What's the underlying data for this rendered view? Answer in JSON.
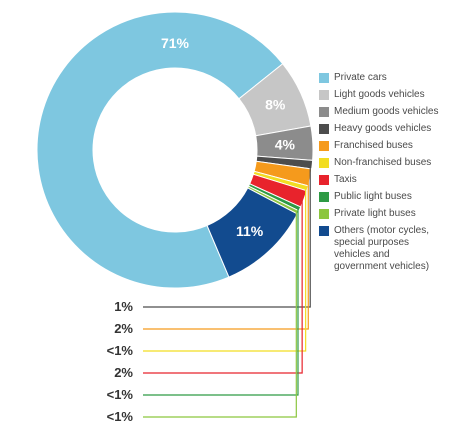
{
  "chart_data": {
    "type": "pie",
    "variant": "donut",
    "slices": [
      {
        "name": "Private cars",
        "value": 71,
        "label": "71%",
        "color": "#7ec7e0"
      },
      {
        "name": "Light goods vehicles",
        "value": 8,
        "label": "8%",
        "color": "#c6c6c6"
      },
      {
        "name": "Medium goods vehicles",
        "value": 4,
        "label": "4%",
        "color": "#8c8c8c"
      },
      {
        "name": "Heavy goods vehicles",
        "value": 1,
        "label": "1%",
        "color": "#4d4d4d"
      },
      {
        "name": "Franchised buses",
        "value": 2,
        "label": "2%",
        "color": "#f59a1c"
      },
      {
        "name": "Non-franchised buses",
        "value": 0.6,
        "label": "<1%",
        "color": "#f2dd22"
      },
      {
        "name": "Taxis",
        "value": 2,
        "label": "2%",
        "color": "#e8232c"
      },
      {
        "name": "Public light buses",
        "value": 0.5,
        "label": "<1%",
        "color": "#2e9a44"
      },
      {
        "name": "Private light buses",
        "value": 0.4,
        "label": "<1%",
        "color": "#8cc63f"
      },
      {
        "name": "Others (motor cycles,\nspecial purposes\nvehicles and\ngovernment vehicles)",
        "value": 11,
        "label": "11%",
        "color": "#124b8f"
      }
    ],
    "legend": {
      "position": "right"
    }
  }
}
